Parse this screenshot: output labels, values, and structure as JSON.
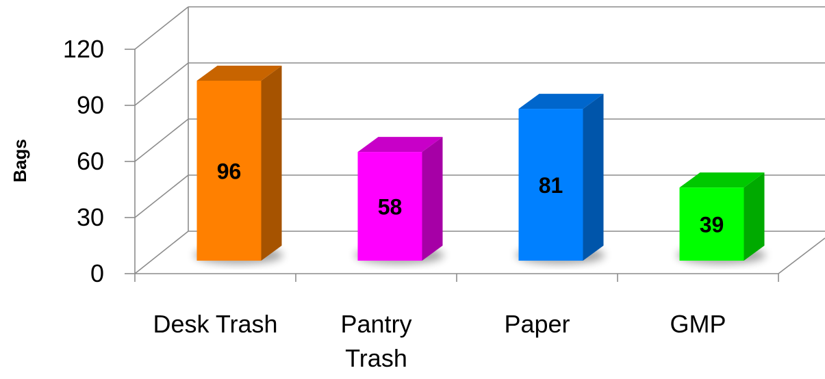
{
  "chart_data": {
    "type": "bar",
    "style": "3d-column",
    "categories": [
      "Desk Trash",
      "Pantry Trash",
      "Paper",
      "GMP"
    ],
    "category_lines": [
      [
        "Desk Trash"
      ],
      [
        "Pantry",
        "Trash"
      ],
      [
        "Paper"
      ],
      [
        "GMP"
      ]
    ],
    "values": [
      96,
      58,
      81,
      39
    ],
    "data_labels": [
      "96",
      "58",
      "81",
      "39"
    ],
    "ylabel": "Bags",
    "ylim": [
      0,
      120
    ],
    "yticks": [
      0,
      30,
      60,
      90,
      120
    ],
    "grid": true,
    "legend": "none",
    "colors": {
      "bars_front": [
        "#ff8000",
        "#ff00ff",
        "#0080ff",
        "#00ff00"
      ],
      "bars_side": [
        "#a65300",
        "#a600a6",
        "#0055aa",
        "#00aa00"
      ],
      "bars_top": [
        "#c86400",
        "#c800c8",
        "#0066cc",
        "#00c800"
      ],
      "gridlines": "#8c8c8c",
      "text": "#000000"
    }
  }
}
